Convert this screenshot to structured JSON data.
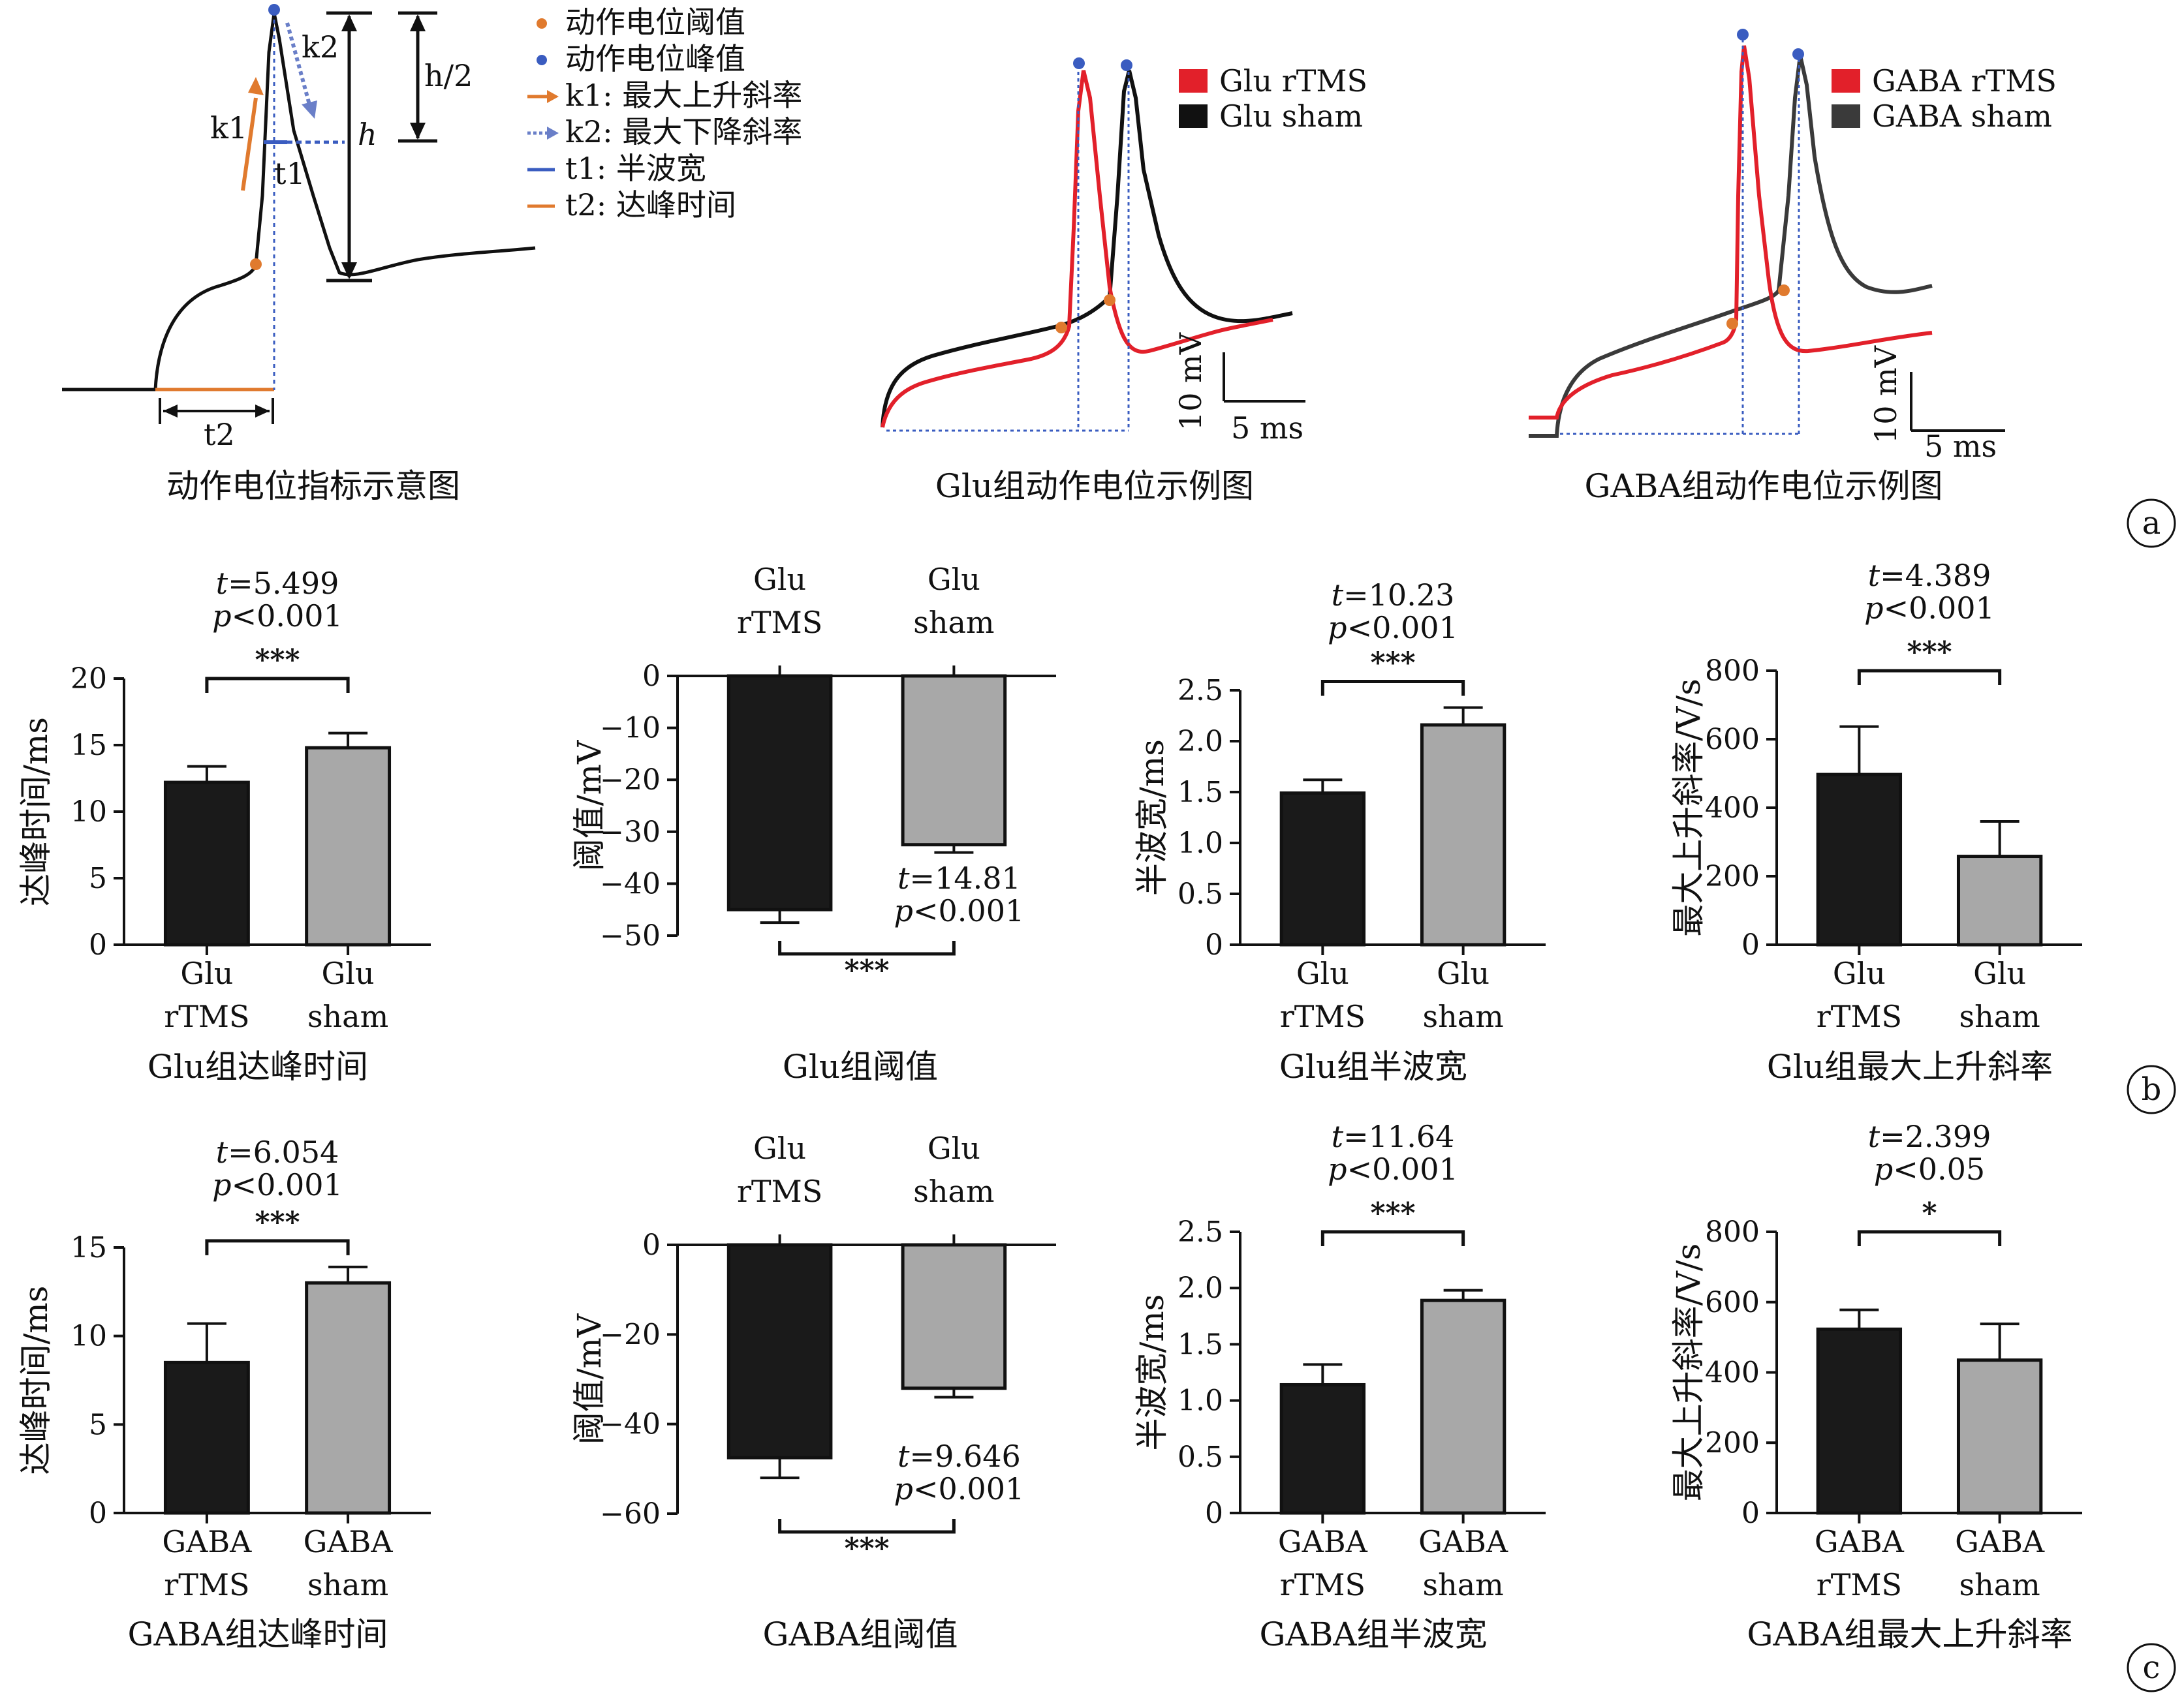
{
  "colors": {
    "rtms_trace": "#e2202a",
    "sham_trace": "#111111",
    "gaba_sham_trace": "#3a3a3a",
    "bar_rtms": "#1a1a1a",
    "bar_sham": "#a8a8a8",
    "threshold_dot": "#e07a2e",
    "peak_dot": "#3a5cc0",
    "k1_arrow": "#e07a2e",
    "k2_arrow": "#6a7fc8",
    "t1_line": "#3a5cc0",
    "t2_line": "#e07a2e",
    "guide_line": "#3a5cc0"
  },
  "panel_a": {
    "label": "a",
    "schematic": {
      "caption": "动作电位指标示意图",
      "legend": [
        {
          "marker": "threshold_dot",
          "text": "动作电位阈值"
        },
        {
          "marker": "peak_dot",
          "text": "动作电位峰值"
        },
        {
          "marker": "k1_arrow",
          "text": "k1: 最大上升斜率"
        },
        {
          "marker": "k2_arrow",
          "text": "k2: 最大下降斜率"
        },
        {
          "marker": "t1_line",
          "text": "t1: 半波宽"
        },
        {
          "marker": "t2_line",
          "text": "t2: 达峰时间"
        }
      ],
      "labels": {
        "k1": "k1",
        "k2": "k2",
        "t1": "t1",
        "t2": "t2",
        "h": "h",
        "h_half": "h/2"
      }
    },
    "glu_example": {
      "caption": "Glu组动作电位示例图",
      "legend": [
        {
          "color": "rtms_trace",
          "text": "Glu rTMS"
        },
        {
          "color": "sham_trace",
          "text": "Glu sham"
        }
      ],
      "scale_v": "10 mV",
      "scale_t": "5 ms"
    },
    "gaba_example": {
      "caption": "GABA组动作电位示例图",
      "legend": [
        {
          "color": "rtms_trace",
          "text": "GABA rTMS"
        },
        {
          "color": "gaba_sham_trace",
          "text": "GABA sham"
        }
      ],
      "scale_v": "10 mV",
      "scale_t": "5 ms"
    }
  },
  "panel_b_label": "b",
  "panel_c_label": "c",
  "chart_data": [
    {
      "id": "glu_time_to_peak",
      "type": "bar",
      "panel": "b",
      "title": "Glu组达峰时间",
      "ylabel": "达峰时间/ms",
      "xlabel": "",
      "categories": [
        "Glu\nrTMS",
        "Glu\nsham"
      ],
      "values": [
        12.2,
        14.8
      ],
      "errors": [
        1.2,
        1.1
      ],
      "ylim": [
        0,
        20
      ],
      "yticks": [
        0,
        5,
        10,
        15,
        20
      ],
      "ytick_labels": [
        "0",
        "5",
        "10",
        "15",
        "20"
      ],
      "stat": {
        "t": "t=5.499",
        "p": "p<0.001"
      },
      "significance": "***",
      "stat_position": "top",
      "bracket_position": "top",
      "negative": false,
      "grid": false
    },
    {
      "id": "glu_threshold",
      "type": "bar",
      "panel": "b",
      "title": "Glu组阈值",
      "ylabel": "阈值/mV",
      "xlabel": "",
      "categories": [
        "Glu\nrTMS",
        "Glu\nsham"
      ],
      "values": [
        -45.0,
        -32.5
      ],
      "errors": [
        2.5,
        1.5
      ],
      "ylim": [
        -50,
        0
      ],
      "yticks": [
        0,
        -10,
        -20,
        -30,
        -40,
        -50
      ],
      "ytick_labels": [
        "0",
        "−10",
        "−20",
        "−30",
        "−40",
        "−50"
      ],
      "stat": {
        "t": "t=14.81",
        "p": "p<0.001"
      },
      "significance": "***",
      "stat_position": "bottom",
      "bracket_position": "bottom",
      "negative": true,
      "grid": false
    },
    {
      "id": "glu_half_width",
      "type": "bar",
      "panel": "b",
      "title": "Glu组半波宽",
      "ylabel": "半波宽/ms",
      "xlabel": "",
      "categories": [
        "Glu\nrTMS",
        "Glu\nsham"
      ],
      "values": [
        1.49,
        2.16
      ],
      "errors": [
        0.13,
        0.17
      ],
      "ylim": [
        0,
        2.5
      ],
      "yticks": [
        0,
        0.5,
        1.0,
        1.5,
        2.0,
        2.5
      ],
      "ytick_labels": [
        "0",
        "0.5",
        "1.0",
        "1.5",
        "2.0",
        "2.5"
      ],
      "stat": {
        "t": "t=10.23",
        "p": "p<0.001"
      },
      "significance": "***",
      "stat_position": "top",
      "bracket_position": "top",
      "negative": false,
      "grid": false
    },
    {
      "id": "glu_max_rise_slope",
      "type": "bar",
      "panel": "b",
      "title": "Glu组最大上升斜率",
      "ylabel": "最大上升斜率/V/s",
      "xlabel": "",
      "categories": [
        "Glu\nrTMS",
        "Glu\nsham"
      ],
      "values": [
        497,
        258
      ],
      "errors": [
        140,
        102
      ],
      "ylim": [
        0,
        800
      ],
      "yticks": [
        0,
        200,
        400,
        600,
        800
      ],
      "ytick_labels": [
        "0",
        "200",
        "400",
        "600",
        "800"
      ],
      "stat": {
        "t": "t=4.389",
        "p": "p<0.001"
      },
      "significance": "***",
      "stat_position": "top",
      "bracket_position": "top",
      "negative": false,
      "grid": false
    },
    {
      "id": "gaba_time_to_peak",
      "type": "bar",
      "panel": "c",
      "title": "GABA组达峰时间",
      "ylabel": "达峰时间/ms",
      "xlabel": "",
      "categories": [
        "GABA\nrTMS",
        "GABA\nsham"
      ],
      "values": [
        8.5,
        13.0
      ],
      "errors": [
        2.2,
        0.9
      ],
      "ylim": [
        0,
        15
      ],
      "yticks": [
        0,
        5,
        10,
        15
      ],
      "ytick_labels": [
        "0",
        "5",
        "10",
        "15"
      ],
      "stat": {
        "t": "t=6.054",
        "p": "p<0.001"
      },
      "significance": "***",
      "stat_position": "top",
      "bracket_position": "top",
      "negative": false,
      "grid": false
    },
    {
      "id": "gaba_threshold",
      "type": "bar",
      "panel": "c",
      "title": "GABA组阈值",
      "ylabel": "阈值/mV",
      "xlabel": "",
      "categories": [
        "Glu\nrTMS",
        "Glu\nsham"
      ],
      "values": [
        -47.5,
        -32.0
      ],
      "errors": [
        4.5,
        2.0
      ],
      "ylim": [
        -60,
        0
      ],
      "yticks": [
        0,
        -20,
        -40,
        -60
      ],
      "ytick_labels": [
        "0",
        "−20",
        "−40",
        "−60"
      ],
      "stat": {
        "t": "t=9.646",
        "p": "p<0.001"
      },
      "significance": "***",
      "stat_position": "bottom",
      "bracket_position": "bottom",
      "negative": true,
      "grid": false
    },
    {
      "id": "gaba_half_width",
      "type": "bar",
      "panel": "c",
      "title": "GABA组半波宽",
      "ylabel": "半波宽/ms",
      "xlabel": "",
      "categories": [
        "GABA\nrTMS",
        "GABA\nsham"
      ],
      "values": [
        1.14,
        1.89
      ],
      "errors": [
        0.18,
        0.09
      ],
      "ylim": [
        0,
        2.5
      ],
      "yticks": [
        0,
        0.5,
        1.0,
        1.5,
        2.0,
        2.5
      ],
      "ytick_labels": [
        "0",
        "0.5",
        "1.0",
        "1.5",
        "2.0",
        "2.5"
      ],
      "stat": {
        "t": "t=11.64",
        "p": "p<0.001"
      },
      "significance": "***",
      "stat_position": "top",
      "bracket_position": "top",
      "negative": false,
      "grid": false
    },
    {
      "id": "gaba_max_rise_slope",
      "type": "bar",
      "panel": "c",
      "title": "GABA组最大上升斜率",
      "ylabel": "最大上升斜率/V/s",
      "xlabel": "",
      "categories": [
        "GABA\nrTMS",
        "GABA\nsham"
      ],
      "values": [
        523,
        435
      ],
      "errors": [
        55,
        103
      ],
      "ylim": [
        0,
        800
      ],
      "yticks": [
        0,
        200,
        400,
        600,
        800
      ],
      "ytick_labels": [
        "0",
        "200",
        "400",
        "600",
        "800"
      ],
      "stat": {
        "t": "t=2.399",
        "p": "p<0.05"
      },
      "significance": "*",
      "stat_position": "top",
      "bracket_position": "top",
      "negative": false,
      "grid": false
    }
  ]
}
